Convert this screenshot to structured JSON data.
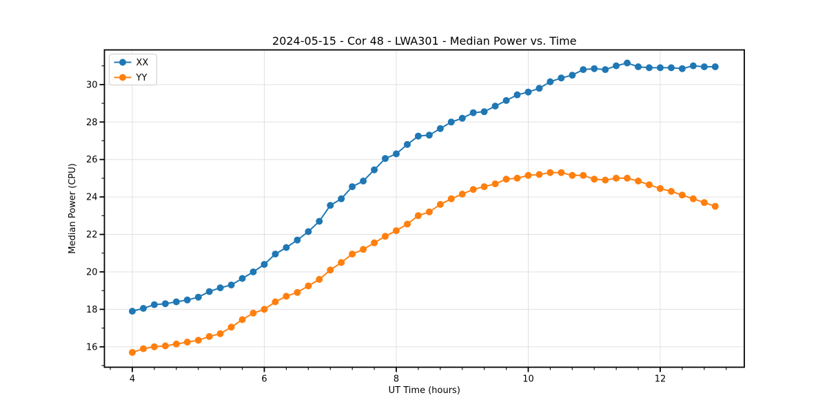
{
  "figure": {
    "background": "#ffffff",
    "plot_background": "#ffffff",
    "spine_color": "#000000",
    "grid_color": "#e0e0e0"
  },
  "chart_data": {
    "type": "line",
    "title": "2024-05-15 - Cor 48 - LWA301 - Median Power vs. Time",
    "xlabel": "UT Time (hours)",
    "ylabel": "Median Power (CPU)",
    "grid": true,
    "legend_position": "upper left",
    "xlim": [
      3.577,
      13.274
    ],
    "ylim": [
      14.91,
      31.85
    ],
    "x_ticks": [
      4,
      6,
      8,
      10,
      12
    ],
    "y_ticks": [
      16,
      18,
      20,
      22,
      24,
      26,
      28,
      30
    ],
    "x_minor_step": 0.3333,
    "y_minor_step": 1,
    "x": [
      4.0,
      4.167,
      4.333,
      4.5,
      4.667,
      4.833,
      5.0,
      5.167,
      5.333,
      5.5,
      5.667,
      5.833,
      6.0,
      6.167,
      6.333,
      6.5,
      6.667,
      6.833,
      7.0,
      7.167,
      7.333,
      7.5,
      7.667,
      7.833,
      8.0,
      8.167,
      8.333,
      8.5,
      8.667,
      8.833,
      9.0,
      9.167,
      9.333,
      9.5,
      9.667,
      9.833,
      10.0,
      10.167,
      10.333,
      10.5,
      10.667,
      10.833,
      11.0,
      11.167,
      11.333,
      11.5,
      11.667,
      11.833,
      12.0,
      12.167,
      12.333,
      12.5,
      12.667,
      12.833
    ],
    "series": [
      {
        "name": "XX",
        "color": "#1f77b4",
        "values": [
          17.9,
          18.05,
          18.25,
          18.3,
          18.4,
          18.5,
          18.65,
          18.95,
          19.15,
          19.3,
          19.65,
          20.0,
          20.4,
          20.95,
          21.3,
          21.7,
          22.15,
          22.7,
          23.55,
          23.9,
          24.55,
          24.85,
          25.45,
          26.05,
          26.3,
          26.8,
          27.25,
          27.3,
          27.65,
          28.0,
          28.2,
          28.5,
          28.55,
          28.85,
          29.15,
          29.45,
          29.6,
          29.8,
          30.15,
          30.35,
          30.5,
          30.8,
          30.85,
          30.8,
          31.0,
          31.15,
          30.95,
          30.9,
          30.9,
          30.9,
          30.85,
          31.0,
          30.95,
          30.95
        ]
      },
      {
        "name": "YY",
        "color": "#ff7f0e",
        "values": [
          15.7,
          15.9,
          16.0,
          16.05,
          16.15,
          16.25,
          16.35,
          16.55,
          16.7,
          17.05,
          17.45,
          17.8,
          18.0,
          18.4,
          18.7,
          18.9,
          19.25,
          19.6,
          20.1,
          20.5,
          20.95,
          21.2,
          21.55,
          21.9,
          22.2,
          22.55,
          23.0,
          23.2,
          23.6,
          23.9,
          24.15,
          24.4,
          24.55,
          24.7,
          24.95,
          25.0,
          25.15,
          25.2,
          25.3,
          25.3,
          25.15,
          25.15,
          24.95,
          24.9,
          25.0,
          25.0,
          24.85,
          24.65,
          24.45,
          24.3,
          24.1,
          23.9,
          23.7,
          23.5
        ]
      }
    ]
  }
}
